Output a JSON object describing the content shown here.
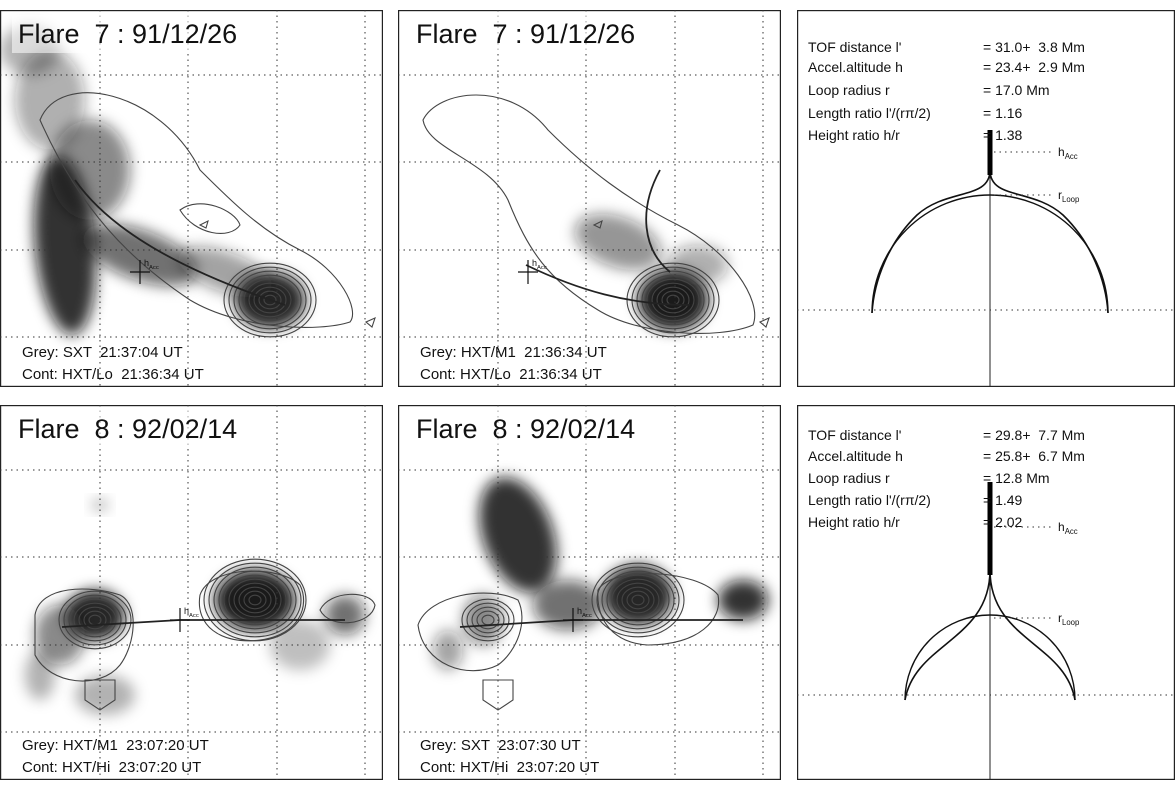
{
  "panels": [
    {
      "title": "Flare  7 : 91/12/26",
      "grey": "Grey: SXT  21:37:04 UT",
      "contour": "Cont: HXT/Lo  21:36:34 UT"
    },
    {
      "title": "Flare  7 : 91/12/26",
      "grey": "Grey: HXT/M1  21:36:34 UT",
      "contour": "Cont: HXT/Lo  21:36:34 UT"
    },
    {
      "title": "Flare  8 : 92/02/14",
      "grey": "Grey: HXT/M1  23:07:20 UT",
      "contour": "Cont: HXT/Hi  23:07:20 UT"
    },
    {
      "title": "Flare  8 : 92/02/14",
      "grey": "Grey: SXT  23:07:30 UT",
      "contour": "Cont: HXT/Hi  23:07:20 UT"
    }
  ],
  "info": [
    {
      "rows": [
        [
          "TOF distance l'",
          "= 31.0+  3.8 Mm"
        ],
        [
          "Accel.altitude h",
          "= 23.4+  2.9 Mm"
        ],
        [
          "Loop radius r",
          "= 17.0 Mm"
        ],
        [
          "Length ratio l'/(rπ/2)",
          "= 1.16"
        ],
        [
          "Height ratio h/r",
          "= 1.38"
        ]
      ]
    },
    {
      "rows": [
        [
          "TOF distance l'",
          "= 29.8+  7.7 Mm"
        ],
        [
          "Accel.altitude h",
          "= 25.8+  6.7 Mm"
        ],
        [
          "Loop radius r",
          "= 12.8 Mm"
        ],
        [
          "Length ratio l'/(rπ/2)",
          "= 1.49"
        ],
        [
          "Height ratio h/r",
          "= 2.02"
        ]
      ]
    }
  ],
  "labels": {
    "h": "h",
    "acc": "Acc",
    "r": "r",
    "loop": "Loop"
  }
}
